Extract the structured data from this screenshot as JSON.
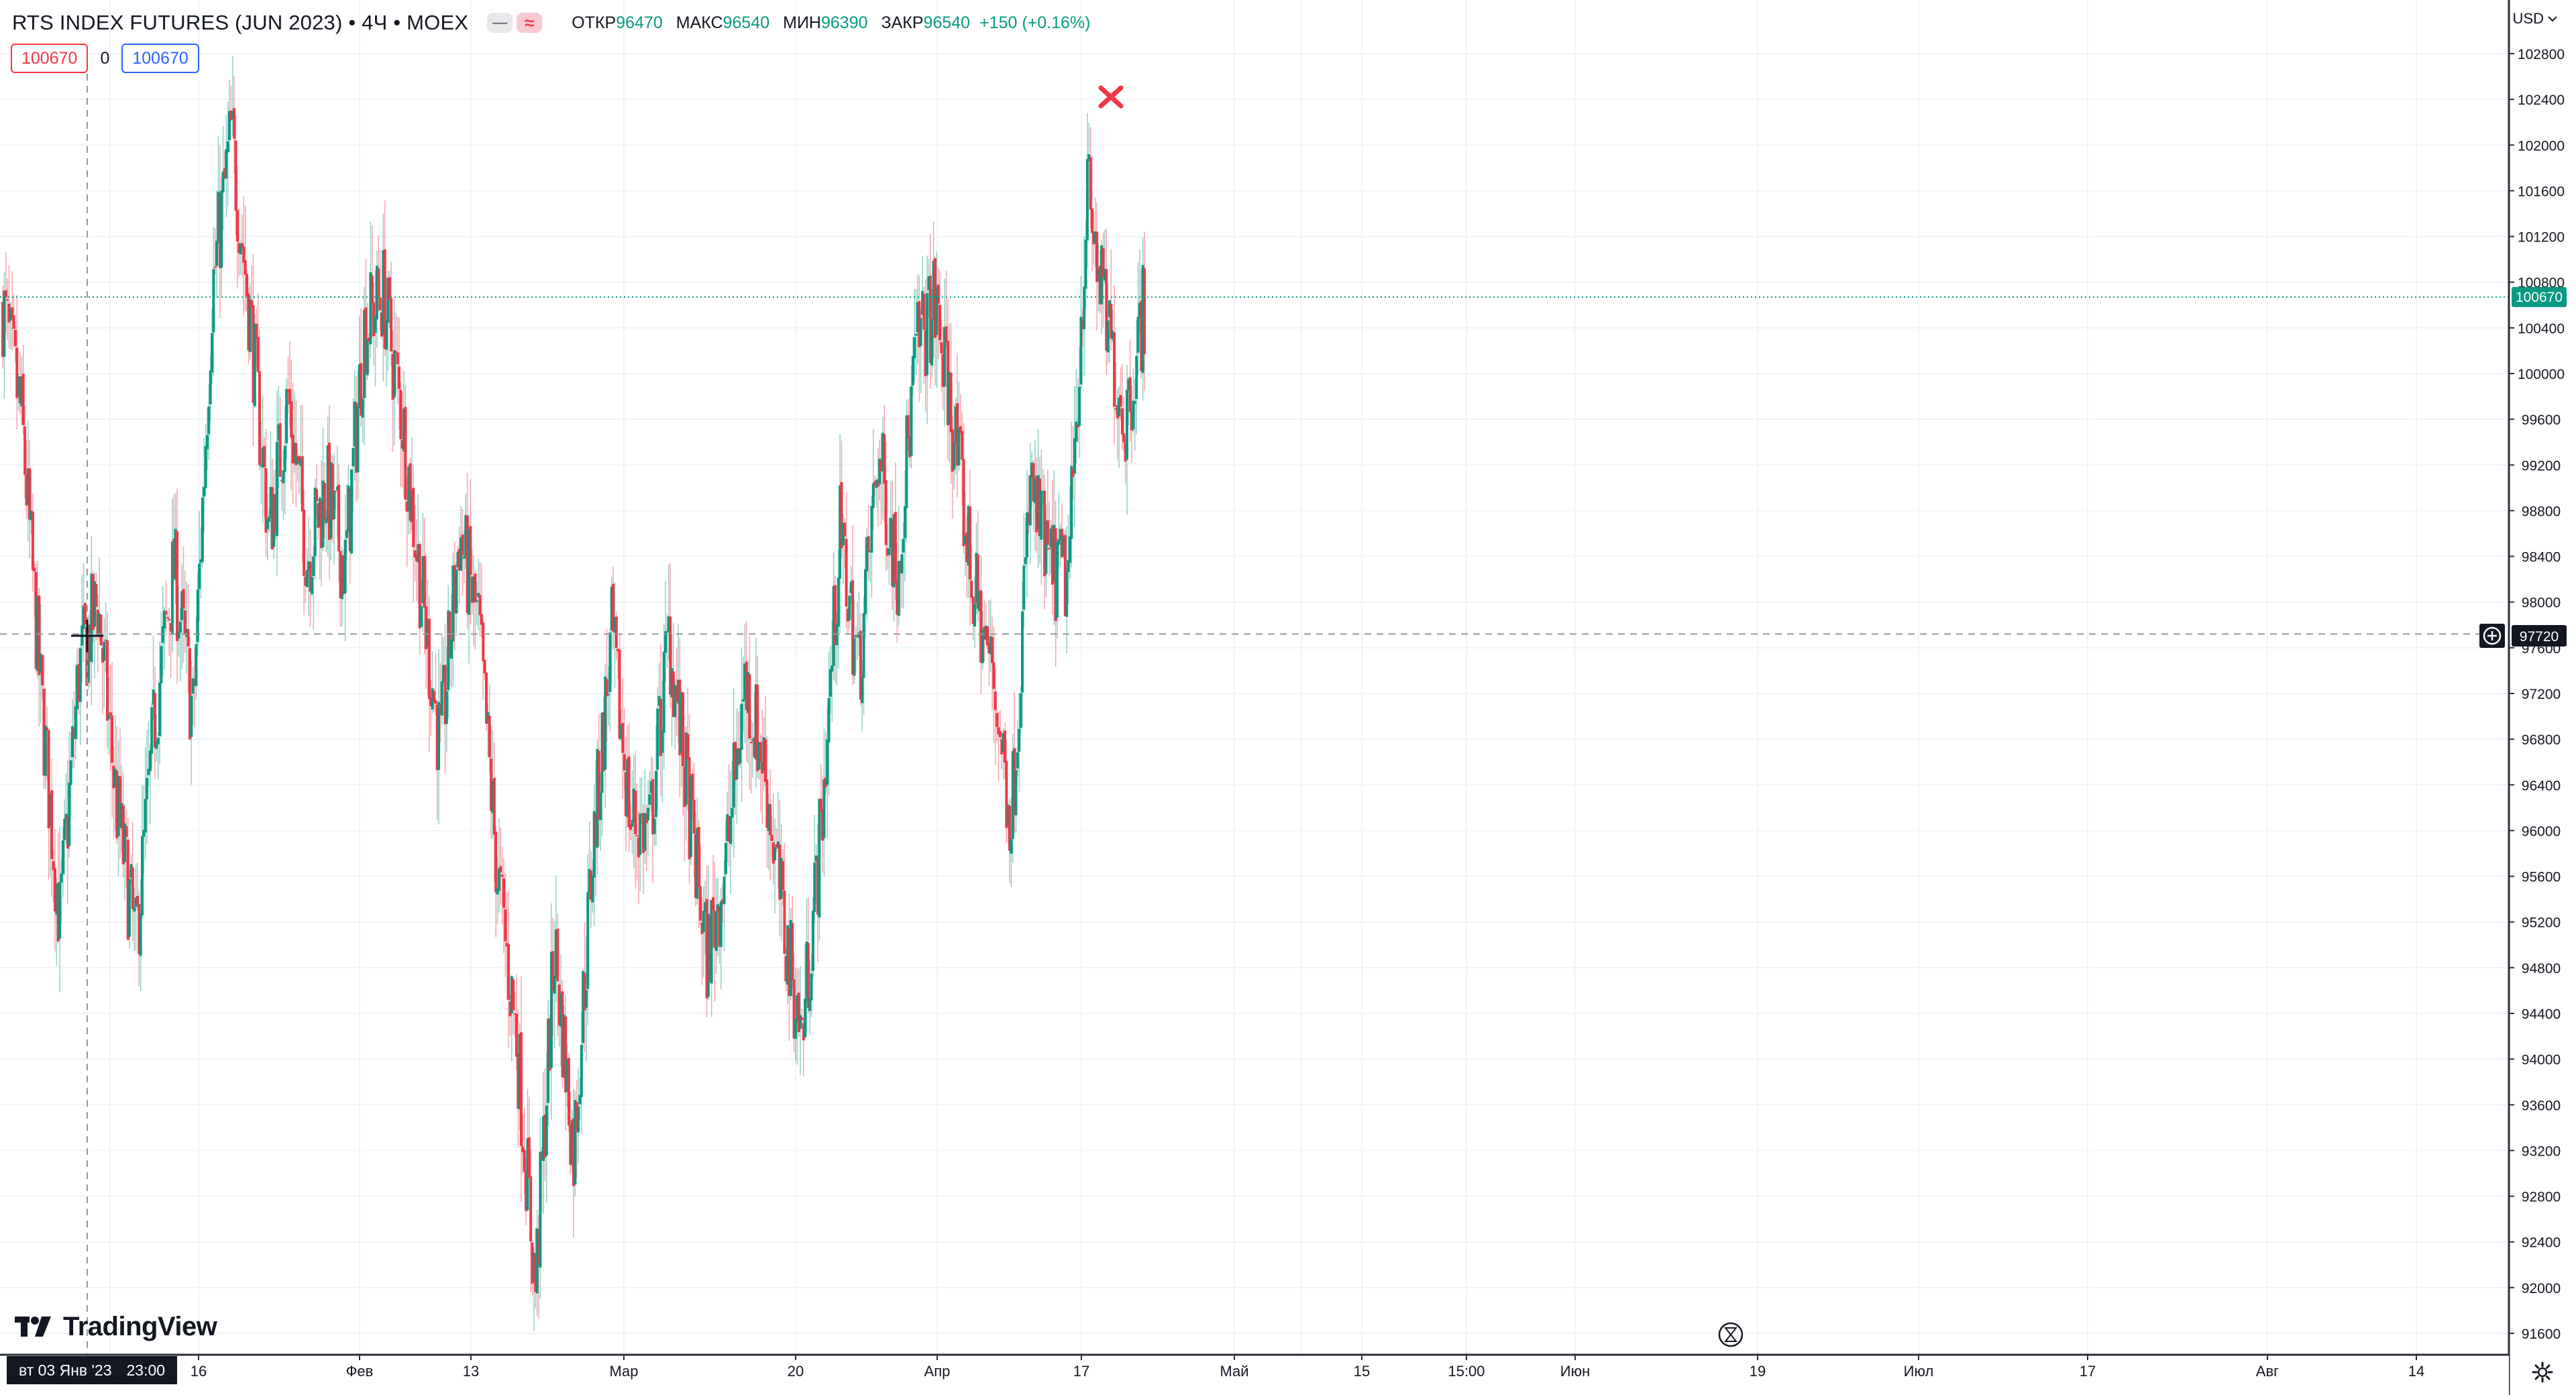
{
  "header": {
    "symbol_title": "RTS INDEX FUTURES (JUN 2023) • 4Ч • MOEX",
    "icons": [
      "minus-icon",
      "approx-icon"
    ],
    "ohlc": {
      "open_label": "ОТКР",
      "open_value": "96470",
      "high_label": "МАКС",
      "high_value": "96540",
      "low_label": "МИН",
      "low_value": "96390",
      "close_label": "ЗАКР",
      "close_value": "96540",
      "change": "+150 (+0.16%)"
    }
  },
  "orders": {
    "sell": "100670",
    "spread": "0",
    "buy": "100670"
  },
  "currency": "USD",
  "logo_text": "TradingView",
  "crosshair": {
    "date": "вт 03 Янв '23",
    "time": "23:00",
    "price_label": "97720"
  },
  "last_price_label": "100670",
  "colors": {
    "up": "#089981",
    "down": "#f23645",
    "accent": "#2962ff",
    "grid": "#f0f3fa",
    "last_price_line": "#089981"
  },
  "price_axis": {
    "ticks": [
      "102800",
      "102400",
      "102000",
      "101600",
      "101200",
      "100800",
      "100400",
      "100000",
      "99600",
      "99200",
      "98800",
      "98400",
      "98000",
      "97600",
      "97200",
      "96800",
      "96400",
      "96000",
      "95600",
      "95200",
      "94800",
      "94400",
      "94000",
      "93600",
      "93200",
      "92800",
      "92400",
      "92000",
      "91600"
    ]
  },
  "time_axis": {
    "labels": [
      "16",
      "Фев",
      "13",
      "Мар",
      "20",
      "Апр",
      "17",
      "Май",
      "15",
      "15:00",
      "Июн",
      "19",
      "Июл",
      "17",
      "Авг",
      "14"
    ]
  },
  "chart_data": {
    "type": "candlestick",
    "symbol": "RTS INDEX FUTURES (JUN 2023)",
    "interval": "4Ч",
    "ylim": [
      91400,
      103000
    ],
    "x_labels": [
      "16",
      "Фев",
      "13",
      "Мар",
      "20",
      "Апр",
      "17",
      "Май",
      "15",
      "15:00",
      "Июн",
      "19",
      "Июл",
      "17",
      "Авг",
      "14"
    ],
    "last_price": 100670,
    "crosshair_price": 97720,
    "high_marker_price": 102600,
    "path": [
      100600,
      99600,
      97200,
      95200,
      97400,
      98000,
      96200,
      95000,
      97000,
      98300,
      97000,
      100700,
      102100,
      100500,
      98600,
      99800,
      98400,
      99000,
      98300,
      100400,
      100700,
      99600,
      98100,
      96700,
      98600,
      97800,
      95600,
      94200,
      92000,
      95000,
      93200,
      95800,
      97700,
      96100,
      96000,
      97700,
      96300,
      94900,
      95700,
      97300,
      96600,
      95200,
      94200,
      96000,
      98600,
      97400,
      99300,
      98300,
      100200,
      100600,
      99500,
      98100,
      97400,
      96100,
      99000,
      98300,
      98200,
      101600,
      100400,
      99600,
      100600
    ],
    "wick_scale": 350,
    "grid": true,
    "legend": "top-left"
  }
}
